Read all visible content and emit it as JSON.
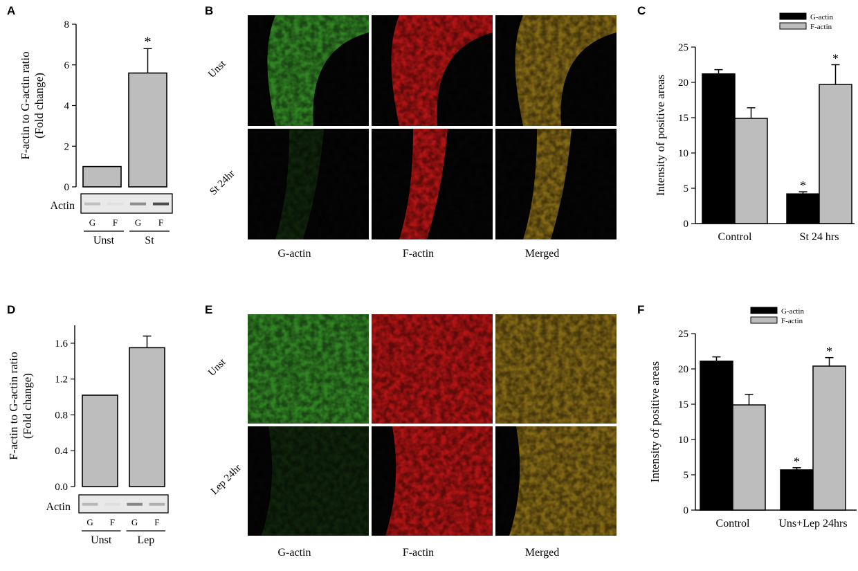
{
  "panels": {
    "A": {
      "label": "A"
    },
    "B": {
      "label": "B"
    },
    "C": {
      "label": "C"
    },
    "D": {
      "label": "D"
    },
    "E": {
      "label": "E"
    },
    "F": {
      "label": "F"
    }
  },
  "colors": {
    "g_actin": "#000000",
    "f_actin": "#bdbdbd",
    "bar": "#bdbdbd",
    "green_channel": "#3a9a2a",
    "red_channel": "#d01818",
    "merged_channel": "#9a7a1a"
  },
  "chart_data": [
    {
      "panel": "A",
      "type": "bar",
      "categories": [
        "Unst",
        "St"
      ],
      "values": [
        1.0,
        5.6
      ],
      "errors": [
        0,
        1.2
      ],
      "significance": [
        "",
        "*"
      ],
      "ylabel_lines": [
        "F-actin to G-actin ratio",
        "(Fold change)"
      ],
      "ylim": [
        0,
        8
      ],
      "yticks": [
        "0",
        "2",
        "4",
        "6",
        "8"
      ],
      "blot": {
        "label": "Actin",
        "lanes": [
          "G",
          "F",
          "G",
          "F"
        ],
        "groups": [
          "Unst",
          "St"
        ]
      }
    },
    {
      "panel": "C",
      "type": "bar",
      "categories": [
        "Control",
        "St 24 hrs"
      ],
      "series": [
        {
          "name": "G-actin",
          "values": [
            21.2,
            4.2
          ],
          "errors": [
            0.6,
            0.3
          ],
          "significance": [
            "",
            "*"
          ]
        },
        {
          "name": "F-actin",
          "values": [
            14.9,
            19.7
          ],
          "errors": [
            1.5,
            2.8
          ],
          "significance": [
            "",
            "*"
          ]
        }
      ],
      "ylabel": "Intensity of positive areas",
      "ylim": [
        0,
        25
      ],
      "yticks": [
        "0",
        "5",
        "10",
        "15",
        "20",
        "25"
      ],
      "legend": "top-right"
    },
    {
      "panel": "D",
      "type": "bar",
      "categories": [
        "Unst",
        "Lep"
      ],
      "values": [
        1.02,
        1.55
      ],
      "errors": [
        0,
        0.13
      ],
      "significance": [
        "",
        ""
      ],
      "ylabel_lines": [
        "F-actin to G-actin ratio",
        "(Fold change)"
      ],
      "ylim": [
        0,
        1.8
      ],
      "yticks": [
        "0.0",
        "0.4",
        "0.8",
        "1.2",
        "1.6"
      ],
      "blot": {
        "label": "Actin",
        "lanes": [
          "G",
          "F",
          "G",
          "F"
        ],
        "groups": [
          "Unst",
          "Lep"
        ]
      }
    },
    {
      "panel": "F",
      "type": "bar",
      "categories": [
        "Control",
        "Uns+Lep 24hrs"
      ],
      "series": [
        {
          "name": "G-actin",
          "values": [
            21.1,
            5.7
          ],
          "errors": [
            0.6,
            0.3
          ],
          "significance": [
            "",
            "*"
          ]
        },
        {
          "name": "F-actin",
          "values": [
            14.9,
            20.4
          ],
          "errors": [
            1.5,
            1.2
          ],
          "significance": [
            "",
            "*"
          ]
        }
      ],
      "ylabel": "Intensity of  positive areas",
      "ylim": [
        0,
        25
      ],
      "yticks": [
        "0",
        "5",
        "10",
        "15",
        "20",
        "25"
      ],
      "legend": "top-center"
    }
  ],
  "micrographs": {
    "B": {
      "rows": [
        "Unst",
        "St 24hr"
      ],
      "columns": [
        "G-actin",
        "F-actin",
        "Merged"
      ]
    },
    "E": {
      "rows": [
        "Unst",
        "Lep 24hr"
      ],
      "columns": [
        "G-actin",
        "F-actin",
        "Merged"
      ]
    }
  }
}
